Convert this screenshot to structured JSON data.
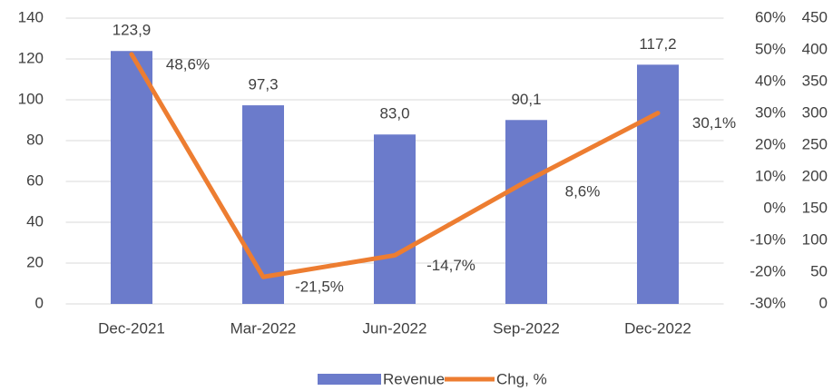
{
  "chart_data": {
    "type": "bar-line",
    "categories": [
      "Dec-2021",
      "Mar-2022",
      "Jun-2022",
      "Sep-2022",
      "Dec-2022"
    ],
    "series": [
      {
        "name": "Revenue",
        "type": "bar",
        "color": "#6b7bcb",
        "values": [
          123.9,
          97.3,
          83.0,
          90.1,
          117.2
        ],
        "value_labels": [
          "123,9",
          "97,3",
          "83,0",
          "90,1",
          "117,2"
        ]
      },
      {
        "name": "Chg, %",
        "type": "line",
        "axis": "y2",
        "color": "#ed7d31",
        "values": [
          48.6,
          -21.5,
          -14.7,
          8.6,
          30.1
        ],
        "value_labels": [
          "48,6%",
          "-21,5%",
          "-14,7%",
          "8,6%",
          "30,1%"
        ]
      }
    ],
    "ylim": [
      0,
      140
    ],
    "yticks": [
      0,
      20,
      40,
      60,
      80,
      100,
      120,
      140
    ],
    "y2lim": [
      -30,
      60
    ],
    "y2ticks": [
      {
        "value": -30,
        "label": "-30%"
      },
      {
        "value": -20,
        "label": "-20%"
      },
      {
        "value": -10,
        "label": "-10%"
      },
      {
        "value": 0,
        "label": "0%"
      },
      {
        "value": 10,
        "label": "10%"
      },
      {
        "value": 20,
        "label": "20%"
      },
      {
        "value": 30,
        "label": "30%"
      },
      {
        "value": 40,
        "label": "40%"
      },
      {
        "value": 50,
        "label": "50%"
      },
      {
        "value": 60,
        "label": "60%"
      }
    ],
    "y3lim": [
      0,
      450
    ],
    "y3ticks": [
      0,
      50,
      100,
      150,
      200,
      250,
      300,
      350,
      400,
      450
    ],
    "grid": true,
    "legend": "bottom"
  }
}
